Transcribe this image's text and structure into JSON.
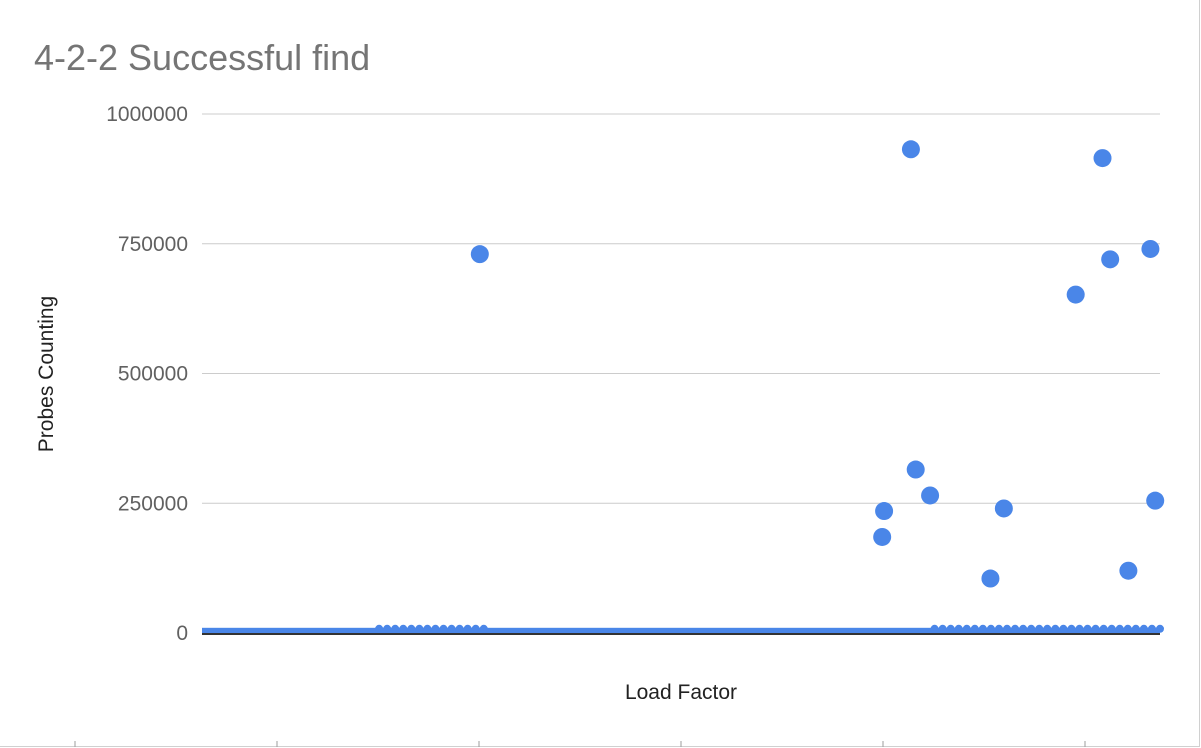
{
  "chart_data": {
    "type": "scatter",
    "title": "4-2-2 Successful find",
    "xlabel": "Load Factor",
    "ylabel": "Probes Counting",
    "ylim": [
      0,
      1000000
    ],
    "yticks": [
      {
        "value": 0,
        "label": "0"
      },
      {
        "value": 250000,
        "label": "250000"
      },
      {
        "value": 500000,
        "label": "500000"
      },
      {
        "value": 750000,
        "label": "750000"
      },
      {
        "value": 1000000,
        "label": "1000000"
      }
    ],
    "grid": true,
    "legend": "none",
    "xlim": [
      0,
      1
    ],
    "series": [
      {
        "color": "#4a86e8",
        "x": [
          0.29,
          0.74,
          0.745,
          0.71,
          0.712,
          0.76,
          0.823,
          0.837,
          0.912,
          0.94,
          0.948,
          0.967,
          0.99,
          0.995,
          0.999
        ],
        "y": [
          730000,
          932000,
          315000,
          185000,
          235000,
          265000,
          105000,
          240000,
          652000,
          915000,
          720000,
          120000,
          740000,
          255000,
          0
        ]
      }
    ],
    "baseline_band": {
      "note_color": "#4a86e8",
      "value_max": 10000
    }
  },
  "colors": {
    "point": "#4a86e8",
    "grid": "#cccccc",
    "axis": "#333333"
  }
}
